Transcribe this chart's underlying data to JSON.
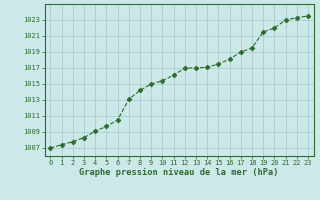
{
  "x": [
    0,
    1,
    2,
    3,
    4,
    5,
    6,
    7,
    8,
    9,
    10,
    11,
    12,
    13,
    14,
    15,
    16,
    17,
    18,
    19,
    20,
    21,
    22,
    23
  ],
  "y": [
    1007.0,
    1007.4,
    1007.8,
    1008.3,
    1009.1,
    1009.7,
    1010.5,
    1013.1,
    1014.2,
    1015.0,
    1015.4,
    1016.1,
    1017.0,
    1017.0,
    1017.1,
    1017.5,
    1018.1,
    1019.0,
    1019.5,
    1021.5,
    1022.0,
    1023.0,
    1023.3,
    1023.5
  ],
  "line_color": "#2d6a2d",
  "marker": "D",
  "marker_size": 2.5,
  "bg_color": "#cce8e8",
  "grid_color": "#aacece",
  "xlabel": "Graphe pression niveau de la mer (hPa)",
  "xlabel_color": "#2d6a2d",
  "tick_color": "#2d6a2d",
  "ylim": [
    1006,
    1025
  ],
  "xlim": [
    -0.5,
    23.5
  ],
  "yticks": [
    1007,
    1009,
    1011,
    1013,
    1015,
    1017,
    1019,
    1021,
    1023
  ],
  "xticks": [
    0,
    1,
    2,
    3,
    4,
    5,
    6,
    7,
    8,
    9,
    10,
    11,
    12,
    13,
    14,
    15,
    16,
    17,
    18,
    19,
    20,
    21,
    22,
    23
  ],
  "tick_fontsize": 5.0,
  "xlabel_fontsize": 6.2
}
